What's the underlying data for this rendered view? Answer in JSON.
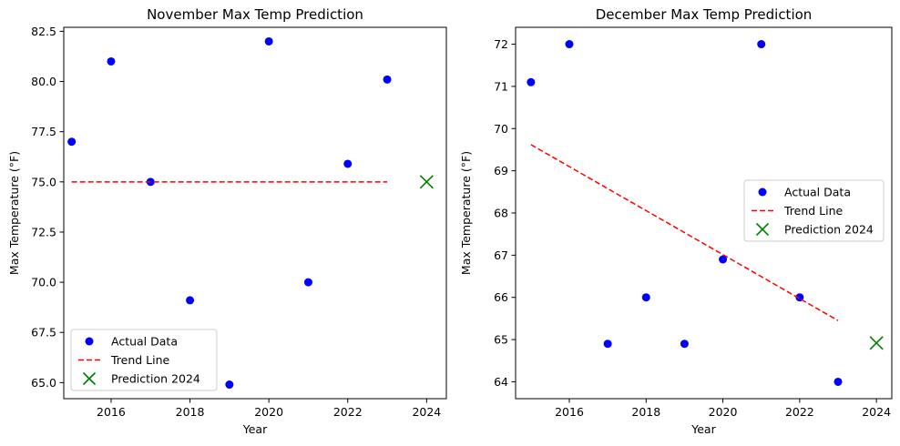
{
  "chart_data": [
    {
      "type": "scatter",
      "title": "November Max Temp Prediction",
      "xlabel": "Year",
      "ylabel": "Max Temperature (°F)",
      "xlim": [
        2014.8,
        2024.5
      ],
      "ylim": [
        64.2,
        82.7
      ],
      "xticks": [
        2016,
        2018,
        2020,
        2022,
        2024
      ],
      "yticks": [
        65.0,
        67.5,
        70.0,
        72.5,
        75.0,
        77.5,
        80.0,
        82.5
      ],
      "ytick_labels": [
        "65.0",
        "67.5",
        "70.0",
        "72.5",
        "75.0",
        "77.5",
        "80.0",
        "82.5"
      ],
      "legend_position": "lower-left",
      "series": [
        {
          "name": "Actual Data",
          "kind": "scatter",
          "color": "#0000ff",
          "x": [
            2015,
            2016,
            2017,
            2018,
            2019,
            2020,
            2021,
            2022,
            2023
          ],
          "y": [
            77.0,
            81.0,
            75.0,
            69.1,
            64.9,
            82.0,
            70.0,
            75.9,
            80.1
          ]
        },
        {
          "name": "Trend Line",
          "kind": "line",
          "style": "dashed",
          "color": "#ff0000",
          "x": [
            2015,
            2023
          ],
          "y": [
            75.0,
            75.0
          ]
        },
        {
          "name": "Prediction 2024",
          "kind": "marker-x",
          "color": "#008000",
          "x": [
            2024
          ],
          "y": [
            75.0
          ]
        }
      ]
    },
    {
      "type": "scatter",
      "title": "December Max Temp Prediction",
      "xlabel": "Year",
      "ylabel": "Max Temperature (°F)",
      "xlim": [
        2014.6,
        2024.4
      ],
      "ylim": [
        63.6,
        72.4
      ],
      "xticks": [
        2016,
        2018,
        2020,
        2022,
        2024
      ],
      "yticks": [
        64,
        65,
        66,
        67,
        68,
        69,
        70,
        71,
        72
      ],
      "ytick_labels": [
        "64",
        "65",
        "66",
        "67",
        "68",
        "69",
        "70",
        "71",
        "72"
      ],
      "legend_position": "center-right",
      "series": [
        {
          "name": "Actual Data",
          "kind": "scatter",
          "color": "#0000ff",
          "x": [
            2015,
            2016,
            2017,
            2018,
            2019,
            2020,
            2021,
            2022,
            2023
          ],
          "y": [
            71.1,
            72.0,
            64.9,
            66.0,
            64.9,
            66.9,
            72.0,
            66.0,
            64.0
          ]
        },
        {
          "name": "Trend Line",
          "kind": "line",
          "style": "dashed",
          "color": "#ff0000",
          "x": [
            2015,
            2023
          ],
          "y": [
            69.62,
            65.45
          ]
        },
        {
          "name": "Prediction 2024",
          "kind": "marker-x",
          "color": "#008000",
          "x": [
            2024
          ],
          "y": [
            64.92
          ]
        }
      ]
    }
  ]
}
